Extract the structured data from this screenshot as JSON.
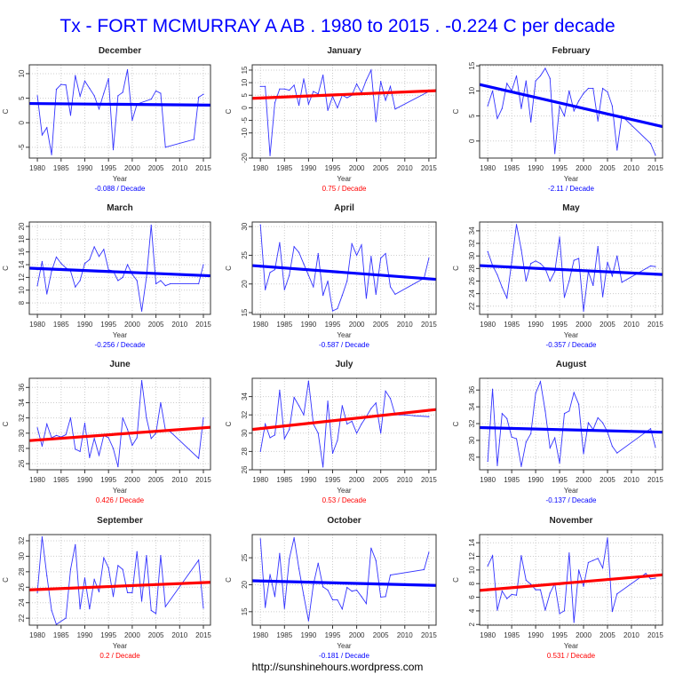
{
  "title": "Tx - FORT MCMURRAY A AB . 1980 to 2015 . -0.224 C per decade",
  "footer": "http://sunshinehours.wordpress.com",
  "colors": {
    "series": "#3333ff",
    "trend_negative": "#0000ff",
    "trend_positive": "#ff0000"
  },
  "chart_data": [
    {
      "type": "line",
      "title": "December",
      "xlabel": "Year",
      "ylabel": "C",
      "xlim": [
        1978.3,
        2016.5
      ],
      "ylim": [
        -7.2,
        11.8
      ],
      "x_ticks": [
        1980,
        1985,
        1990,
        1995,
        2000,
        2005,
        2010,
        2015
      ],
      "y_ticks": [
        -5,
        0,
        5,
        10
      ],
      "grid": true,
      "x": [
        1980,
        1981,
        1982,
        1983,
        1984,
        1985,
        1986,
        1987,
        1988,
        1989,
        1990,
        1991,
        1992,
        1993,
        1994,
        1995,
        1996,
        1997,
        1998,
        1999,
        2000,
        2001,
        2004,
        2005,
        2006,
        2007,
        2013,
        2014,
        2015
      ],
      "y": [
        5.5,
        -2.5,
        -1,
        -6.5,
        6.8,
        7.8,
        7.7,
        1.5,
        9.6,
        5.4,
        8.5,
        7,
        5.5,
        2.8,
        6,
        9,
        -5.5,
        5.5,
        6.2,
        10.8,
        0.5,
        3.8,
        4.8,
        6.5,
        6,
        -5,
        -3.4,
        5.2,
        5.8
      ],
      "trend": {
        "start": 3.9,
        "end": 3.6
      },
      "trend_label": "-0.088  / Decade"
    },
    {
      "type": "line",
      "title": "January",
      "xlabel": "Year",
      "ylabel": "C",
      "xlim": [
        1978.3,
        2016.5
      ],
      "ylim": [
        -20,
        17.1
      ],
      "x_ticks": [
        1980,
        1985,
        1990,
        1995,
        2000,
        2005,
        2010,
        2015
      ],
      "y_ticks": [
        -20,
        -10,
        -5,
        0,
        5,
        10,
        15
      ],
      "grid": true,
      "x": [
        1980,
        1981,
        1982,
        1983,
        1984,
        1985,
        1986,
        1987,
        1988,
        1989,
        1990,
        1991,
        1992,
        1993,
        1994,
        1995,
        1996,
        1997,
        1998,
        1999,
        2000,
        2001,
        2002,
        2003,
        2004,
        2005,
        2006,
        2007,
        2008,
        2015
      ],
      "y": [
        8.5,
        8.5,
        -19,
        2,
        7.5,
        7.5,
        7,
        9,
        1,
        11.5,
        1.5,
        6.5,
        5.5,
        13,
        -1,
        4.5,
        0,
        5,
        4,
        5,
        9.5,
        6,
        11,
        15,
        -5.5,
        10.5,
        3,
        8.5,
        -0.5,
        6.5
      ],
      "trend": {
        "start": 3.9,
        "end": 6.7
      },
      "trend_label": "0.75  / Decade"
    },
    {
      "type": "line",
      "title": "February",
      "xlabel": "Year",
      "ylabel": "C",
      "xlim": [
        1978.3,
        2016.5
      ],
      "ylim": [
        -3.4,
        15.2
      ],
      "x_ticks": [
        1980,
        1985,
        1990,
        1995,
        2000,
        2005,
        2010,
        2015
      ],
      "y_ticks": [
        0,
        5,
        10,
        15
      ],
      "grid": true,
      "x": [
        1980,
        1981,
        1982,
        1983,
        1984,
        1985,
        1986,
        1987,
        1988,
        1989,
        1990,
        1991,
        1992,
        1993,
        1994,
        1995,
        1996,
        1997,
        1998,
        1999,
        2000,
        2001,
        2002,
        2003,
        2004,
        2005,
        2006,
        2007,
        2008,
        2014,
        2015
      ],
      "y": [
        7,
        10,
        4.5,
        6.5,
        11.5,
        10,
        13,
        6.5,
        12,
        3.8,
        12,
        13,
        14.5,
        12.5,
        -2.5,
        7,
        5,
        10,
        6,
        8,
        9.5,
        10.5,
        10.5,
        4,
        10.5,
        9.8,
        7,
        -1.8,
        5,
        -0.5,
        -2.8
      ],
      "trend": {
        "start": 10.9,
        "end": 3.2
      },
      "trend_label": "-2.11  / Decade"
    },
    {
      "type": "line",
      "title": "March",
      "xlabel": "Year",
      "ylabel": "C",
      "xlim": [
        1978.3,
        2016.5
      ],
      "ylim": [
        6.2,
        20.7
      ],
      "x_ticks": [
        1980,
        1985,
        1990,
        1995,
        2000,
        2005,
        2010,
        2015
      ],
      "y_ticks": [
        8,
        10,
        12,
        14,
        16,
        18,
        20
      ],
      "grid": true,
      "x": [
        1980,
        1981,
        1982,
        1983,
        1984,
        1985,
        1986,
        1987,
        1988,
        1989,
        1990,
        1991,
        1992,
        1993,
        1994,
        1995,
        1996,
        1997,
        1998,
        1999,
        2000,
        2001,
        2002,
        2003,
        2004,
        2005,
        2006,
        2007,
        2008,
        2014,
        2015
      ],
      "y": [
        10.7,
        14.5,
        9.4,
        13,
        15.2,
        14.2,
        13.5,
        13,
        10.5,
        11.5,
        14.2,
        14.8,
        16.8,
        15.3,
        16.4,
        13.2,
        13,
        11.5,
        12,
        14,
        12.5,
        11.5,
        6.7,
        12,
        20.2,
        11,
        11.5,
        10.7,
        11,
        11,
        14
      ],
      "trend": {
        "start": 13.4,
        "end": 12.3
      },
      "trend_label": "-0.256  / Decade"
    },
    {
      "type": "line",
      "title": "April",
      "xlabel": "Year",
      "ylabel": "C",
      "xlim": [
        1978.3,
        2016.5
      ],
      "ylim": [
        14.7,
        30.8
      ],
      "x_ticks": [
        1980,
        1985,
        1990,
        1995,
        2000,
        2005,
        2010,
        2015
      ],
      "y_ticks": [
        15,
        20,
        25,
        30
      ],
      "grid": true,
      "x": [
        1980,
        1981,
        1982,
        1983,
        1984,
        1985,
        1986,
        1987,
        1988,
        1989,
        1990,
        1991,
        1992,
        1993,
        1994,
        1995,
        1996,
        1997,
        1998,
        1999,
        2000,
        2001,
        2002,
        2003,
        2004,
        2005,
        2006,
        2007,
        2008,
        2014,
        2015
      ],
      "y": [
        30.3,
        19,
        22,
        22.5,
        27.2,
        19,
        21.5,
        26.5,
        25.5,
        23.5,
        21.5,
        19.5,
        25.3,
        18,
        20.5,
        15.3,
        15.7,
        18,
        20.5,
        27,
        25,
        26.8,
        17.5,
        24.8,
        18.2,
        24.5,
        25.3,
        19.5,
        18.2,
        21,
        24.5
      ],
      "trend": {
        "start": 23.1,
        "end": 20.9
      },
      "trend_label": "-0.587  / Decade"
    },
    {
      "type": "line",
      "title": "May",
      "xlabel": "Year",
      "ylabel": "C",
      "xlim": [
        1978.3,
        2016.5
      ],
      "ylim": [
        20.7,
        35.4
      ],
      "x_ticks": [
        1980,
        1985,
        1990,
        1995,
        2000,
        2005,
        2010,
        2015
      ],
      "y_ticks": [
        22,
        24,
        26,
        28,
        30,
        32,
        34
      ],
      "grid": true,
      "x": [
        1980,
        1981,
        1982,
        1983,
        1984,
        1985,
        1986,
        1987,
        1988,
        1989,
        1990,
        1991,
        1992,
        1993,
        1994,
        1995,
        1996,
        1997,
        1998,
        1999,
        2000,
        2001,
        2002,
        2003,
        2004,
        2005,
        2006,
        2007,
        2008,
        2014,
        2015
      ],
      "y": [
        30.7,
        28.5,
        27,
        25,
        23.3,
        29,
        35,
        31,
        26,
        28.8,
        29.2,
        28.8,
        28,
        26,
        27.5,
        33,
        23.4,
        26,
        29.3,
        29.6,
        21.2,
        27.5,
        25.3,
        31.5,
        23.5,
        29,
        26.8,
        30,
        25.8,
        28.4,
        28.3
      ],
      "trend": {
        "start": 28.4,
        "end": 27.1
      },
      "trend_label": "-0.357  / Decade"
    },
    {
      "type": "line",
      "title": "June",
      "xlabel": "Year",
      "ylabel": "C",
      "xlim": [
        1978.3,
        2016.5
      ],
      "ylim": [
        25.2,
        37.2
      ],
      "x_ticks": [
        1980,
        1985,
        1990,
        1995,
        2000,
        2005,
        2010,
        2015
      ],
      "y_ticks": [
        26,
        28,
        30,
        32,
        34,
        36
      ],
      "grid": true,
      "x": [
        1980,
        1981,
        1982,
        1983,
        1984,
        1985,
        1986,
        1987,
        1988,
        1989,
        1990,
        1991,
        1992,
        1993,
        1994,
        1995,
        1996,
        1997,
        1998,
        1999,
        2000,
        2001,
        2002,
        2003,
        2004,
        2005,
        2006,
        2007,
        2008,
        2014,
        2015
      ],
      "y": [
        30.7,
        28.3,
        31.2,
        29.4,
        29.7,
        29.5,
        29.8,
        32,
        27.9,
        27.6,
        31.3,
        26.8,
        29.3,
        27.1,
        29.7,
        29.4,
        28,
        25.6,
        32,
        30.5,
        28.4,
        29.4,
        36.9,
        32,
        29.3,
        30,
        34,
        30.4,
        30.2,
        26.7,
        32
      ],
      "trend": {
        "start": 29.1,
        "end": 30.7
      },
      "trend_label": "0.426  / Decade"
    },
    {
      "type": "line",
      "title": "July",
      "xlabel": "Year",
      "ylabel": "C",
      "xlim": [
        1978.3,
        2016.5
      ],
      "ylim": [
        26,
        36
      ],
      "x_ticks": [
        1980,
        1985,
        1990,
        1995,
        2000,
        2005,
        2010,
        2015
      ],
      "y_ticks": [
        26,
        28,
        30,
        32,
        34
      ],
      "grid": true,
      "x": [
        1980,
        1981,
        1982,
        1983,
        1984,
        1985,
        1986,
        1987,
        1988,
        1989,
        1990,
        1991,
        1992,
        1993,
        1994,
        1995,
        1996,
        1997,
        1998,
        1999,
        2000,
        2001,
        2002,
        2003,
        2004,
        2005,
        2006,
        2007,
        2008,
        2009,
        2010,
        2012,
        2015
      ],
      "y": [
        28,
        31,
        29.5,
        29.8,
        34.7,
        29.4,
        30.4,
        33.9,
        33,
        32,
        35.7,
        31,
        30,
        26.3,
        33.5,
        27.8,
        29.2,
        33,
        31,
        31.3,
        30,
        31,
        31.8,
        32.7,
        33.3,
        30,
        34.6,
        33.8,
        32,
        32,
        32,
        31.9,
        31.8
      ],
      "trend": {
        "start": 30.5,
        "end": 32.5
      },
      "trend_label": "0.53  / Decade"
    },
    {
      "type": "line",
      "title": "August",
      "xlabel": "Year",
      "ylabel": "C",
      "xlim": [
        1978.3,
        2016.5
      ],
      "ylim": [
        26.5,
        37.4
      ],
      "x_ticks": [
        1980,
        1985,
        1990,
        1995,
        2000,
        2005,
        2010,
        2015
      ],
      "y_ticks": [
        28,
        30,
        32,
        34,
        36
      ],
      "grid": true,
      "x": [
        1980,
        1981,
        1982,
        1983,
        1984,
        1985,
        1986,
        1987,
        1988,
        1989,
        1990,
        1991,
        1992,
        1993,
        1994,
        1995,
        1996,
        1997,
        1998,
        1999,
        2000,
        2001,
        2002,
        2003,
        2004,
        2005,
        2006,
        2007,
        2014,
        2015
      ],
      "y": [
        27.5,
        36.1,
        27,
        33.2,
        32.6,
        30.4,
        30.2,
        26.9,
        29.8,
        30.8,
        35.6,
        37,
        33.5,
        29.1,
        30.3,
        27.3,
        33.2,
        33.5,
        35.7,
        34.3,
        28.4,
        32.1,
        31.3,
        32.7,
        32.1,
        31,
        29.3,
        28.5,
        31.4,
        29.2
      ],
      "trend": {
        "start": 31.5,
        "end": 31.0
      },
      "trend_label": "-0.137  / Decade"
    },
    {
      "type": "line",
      "title": "September",
      "xlabel": "Year",
      "ylabel": "C",
      "xlim": [
        1978.3,
        2016.5
      ],
      "ylim": [
        21.1,
        32.8
      ],
      "x_ticks": [
        1980,
        1985,
        1990,
        1995,
        2000,
        2005,
        2010,
        2015
      ],
      "y_ticks": [
        22,
        24,
        26,
        28,
        30,
        32
      ],
      "grid": true,
      "x": [
        1980,
        1981,
        1982,
        1983,
        1984,
        1986,
        1987,
        1988,
        1989,
        1990,
        1991,
        1992,
        1993,
        1994,
        1995,
        1996,
        1997,
        1998,
        1999,
        2000,
        2001,
        2002,
        2003,
        2004,
        2005,
        2006,
        2007,
        2014,
        2015
      ],
      "y": [
        25.3,
        32.5,
        27.5,
        23,
        21.2,
        22,
        28.3,
        31.5,
        23.2,
        27.2,
        23.2,
        27,
        25.4,
        29.8,
        28.5,
        24.8,
        28.8,
        28.3,
        25.3,
        25.3,
        30.6,
        24.2,
        30.1,
        23,
        22.6,
        30.1,
        23.5,
        29.5,
        23.3
      ],
      "trend": {
        "start": 25.7,
        "end": 26.6
      },
      "trend_label": "0.2  / Decade"
    },
    {
      "type": "line",
      "title": "October",
      "xlabel": "Year",
      "ylabel": "C",
      "xlim": [
        1978.3,
        2016.5
      ],
      "ylim": [
        12.5,
        29.3
      ],
      "x_ticks": [
        1980,
        1985,
        1990,
        1995,
        2000,
        2005,
        2010,
        2015
      ],
      "y_ticks": [
        15,
        20,
        25
      ],
      "grid": true,
      "x": [
        1980,
        1981,
        1982,
        1983,
        1984,
        1985,
        1986,
        1987,
        1988,
        1989,
        1990,
        1991,
        1992,
        1993,
        1994,
        1995,
        1996,
        1997,
        1998,
        1999,
        2000,
        2001,
        2002,
        2003,
        2004,
        2005,
        2006,
        2007,
        2014,
        2015
      ],
      "y": [
        28.5,
        15.8,
        21.9,
        17.8,
        25.8,
        15.6,
        24.8,
        28.7,
        23,
        18,
        13.3,
        20,
        24,
        19.6,
        19,
        17.2,
        17.2,
        15.5,
        19.5,
        18.8,
        19,
        17.8,
        16.5,
        26.8,
        24.5,
        17.7,
        17.8,
        21.8,
        22.8,
        26
      ],
      "trend": {
        "start": 20.7,
        "end": 19.9
      },
      "trend_label": "-0.181  / Decade"
    },
    {
      "type": "line",
      "title": "November",
      "xlabel": "Year",
      "ylabel": "C",
      "xlim": [
        1978.3,
        2016.5
      ],
      "ylim": [
        1.9,
        15.2
      ],
      "x_ticks": [
        1980,
        1985,
        1990,
        1995,
        2000,
        2005,
        2010,
        2015
      ],
      "y_ticks": [
        2,
        4,
        6,
        8,
        10,
        12,
        14
      ],
      "grid": true,
      "x": [
        1980,
        1981,
        1982,
        1983,
        1984,
        1985,
        1986,
        1987,
        1988,
        1989,
        1990,
        1991,
        1992,
        1993,
        1994,
        1995,
        1996,
        1997,
        1998,
        1999,
        2000,
        2001,
        2002,
        2003,
        2004,
        2005,
        2006,
        2007,
        2013,
        2014,
        2015
      ],
      "y": [
        10.6,
        12.1,
        4.1,
        6.9,
        5.8,
        6.4,
        6.3,
        12.1,
        8.5,
        7.9,
        7.1,
        7.1,
        4.1,
        6.6,
        8,
        3.6,
        4,
        12.5,
        2.3,
        10,
        7.6,
        11.1,
        11.4,
        11.7,
        10.3,
        14.7,
        3.9,
        6.5,
        9.5,
        8.7,
        8.8
      ],
      "trend": {
        "start": 7.1,
        "end": 9.2
      },
      "trend_label": "0.531  / Decade"
    }
  ]
}
